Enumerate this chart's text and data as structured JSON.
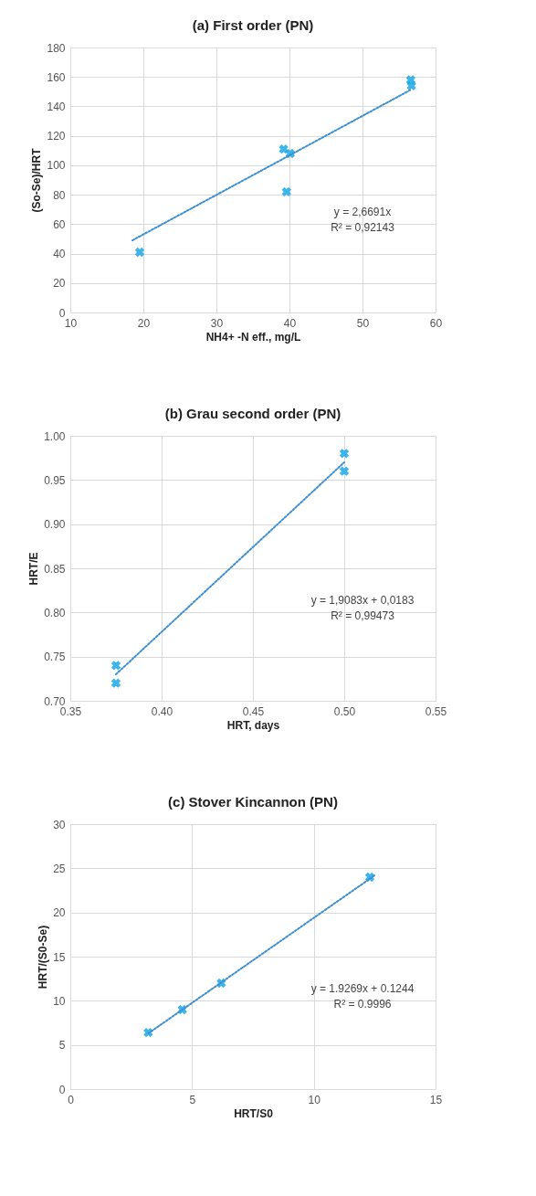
{
  "chart_data": [
    {
      "type": "scatter",
      "title": "(a) First order (PN)",
      "xlabel": "NH4+ -N eff., mg/L",
      "ylabel": "(So-Se)/HRT",
      "xlim": [
        10,
        60
      ],
      "ylim": [
        0,
        180
      ],
      "xticks": [
        10,
        20,
        30,
        40,
        50,
        60
      ],
      "yticks": [
        0,
        20,
        40,
        60,
        80,
        100,
        120,
        140,
        160,
        180
      ],
      "grid": true,
      "series": [
        {
          "type": "scatter",
          "marker": "cross",
          "color": "#1ba8e6",
          "x": [
            19.5,
            39.2,
            40.1,
            39.6,
            56.6,
            56.7
          ],
          "values": [
            41,
            111,
            108,
            82,
            158,
            154
          ]
        },
        {
          "type": "line",
          "color": "#3d8fd1",
          "line_style": "dotted",
          "x": [
            18.5,
            56.5
          ],
          "values": [
            49,
            151
          ]
        }
      ],
      "annotations": [
        "y = 2,6691x",
        "R² = 0,92143"
      ]
    },
    {
      "type": "scatter",
      "title": "(b) Grau second order (PN)",
      "xlabel": "HRT, days",
      "ylabel": "HRT/E",
      "xlim": [
        0.35,
        0.55
      ],
      "ylim": [
        0.7,
        1.0
      ],
      "xticks": [
        {
          "value": 0.35,
          "label": "0.35"
        },
        {
          "value": 0.4,
          "label": "0.40"
        },
        {
          "value": 0.45,
          "label": "0.45"
        },
        {
          "value": 0.5,
          "label": "0.50"
        },
        {
          "value": 0.55,
          "label": "0.55"
        }
      ],
      "yticks": [
        {
          "value": 0.7,
          "label": "0.70"
        },
        {
          "value": 0.75,
          "label": "0.75"
        },
        {
          "value": 0.8,
          "label": "0.80"
        },
        {
          "value": 0.85,
          "label": "0.85"
        },
        {
          "value": 0.9,
          "label": "0.90"
        },
        {
          "value": 0.95,
          "label": "0.95"
        },
        {
          "value": 1.0,
          "label": "1.00"
        }
      ],
      "grid": true,
      "series": [
        {
          "type": "scatter",
          "marker": "cross",
          "color": "#1ba8e6",
          "x": [
            0.375,
            0.375,
            0.5,
            0.5
          ],
          "values": [
            0.72,
            0.74,
            0.96,
            0.98
          ]
        },
        {
          "type": "line",
          "color": "#3d8fd1",
          "line_style": "dotted",
          "x": [
            0.375,
            0.5
          ],
          "values": [
            0.73,
            0.97
          ]
        }
      ],
      "annotations": [
        "y = 1,9083x + 0,0183",
        "R² = 0,99473"
      ]
    },
    {
      "type": "scatter",
      "title": "(c) Stover Kincannon (PN)",
      "xlabel": "HRT/S0",
      "ylabel": "HRT/(S0-Se)",
      "xlim": [
        0,
        15
      ],
      "ylim": [
        0,
        30
      ],
      "xticks": [
        0,
        5,
        10,
        15
      ],
      "yticks": [
        0,
        5,
        10,
        15,
        20,
        25,
        30
      ],
      "grid": true,
      "series": [
        {
          "type": "scatter",
          "marker": "cross",
          "color": "#1ba8e6",
          "x": [
            3.2,
            4.6,
            6.2,
            12.3
          ],
          "values": [
            6.4,
            9.0,
            12.0,
            24.0
          ]
        },
        {
          "type": "line",
          "color": "#3d8fd1",
          "line_style": "dotted",
          "x": [
            3.2,
            12.5
          ],
          "values": [
            6.3,
            24.2
          ]
        }
      ],
      "annotations": [
        "y = 1.9269x + 0.1244",
        "R² = 0.9996"
      ]
    }
  ]
}
